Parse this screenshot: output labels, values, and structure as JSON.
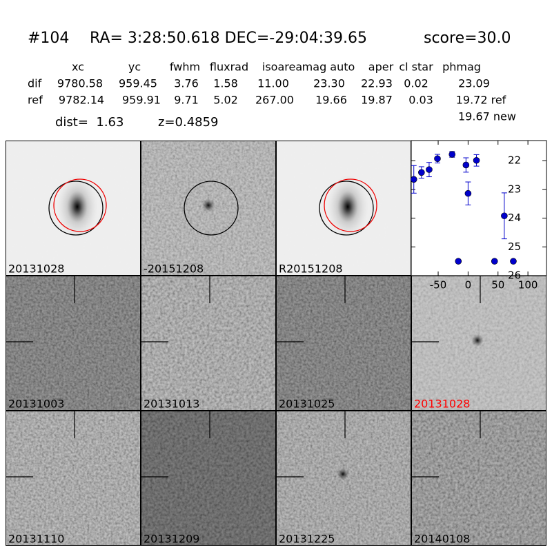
{
  "header": {
    "id": "#104",
    "coords": "RA= 3:28:50.618 DEC=-29:04:39.65",
    "score": "score=30.0"
  },
  "table": {
    "columns": [
      "xc",
      "yc",
      "fwhm",
      "fluxrad",
      "isoarea",
      "mag auto",
      "aper",
      "cl star",
      "phmag"
    ],
    "rows": [
      [
        "dif",
        "9780.58",
        "959.45",
        "3.76",
        "1.58",
        "11.00",
        "23.30",
        "22.93",
        "0.02",
        "23.09"
      ],
      [
        "ref",
        "9782.14",
        "959.91",
        "9.71",
        "5.02",
        "267.00",
        "19.66",
        "19.87",
        "0.03",
        "19.72 ref"
      ]
    ],
    "extra": "19.67 new"
  },
  "dist": "dist=  1.63",
  "z": "z=0.4859",
  "panels": [
    {
      "label": "20131028"
    },
    {
      "label": "-20151208"
    },
    {
      "label": "R20151208"
    },
    {
      "label": "20131003"
    },
    {
      "label": "20131013"
    },
    {
      "label": "20131025"
    },
    {
      "label": "20131028",
      "color": "red"
    },
    {
      "label": "20131110"
    },
    {
      "label": "20131209"
    },
    {
      "label": "20131225"
    },
    {
      "label": "20140108"
    }
  ],
  "chart_data": {
    "type": "scatter",
    "color": "#0000cc",
    "x": [
      -90.7,
      -77.9,
      -65.1,
      -51.2,
      -26.7,
      -16.3,
      -3.5,
      0,
      14,
      44.2,
      60.5,
      75.6
    ],
    "values": [
      22.65,
      22.41,
      22.31,
      21.93,
      21.78,
      25.5,
      22.15,
      23.14,
      21.99,
      25.5,
      23.92,
      25.5
    ],
    "errors": [
      0.48,
      0.2,
      0.25,
      0.15,
      0.1,
      null,
      0.25,
      0.4,
      0.2,
      null,
      0.8,
      null
    ],
    "xlim": [
      -95,
      131
    ],
    "ylim": [
      21.3,
      26
    ],
    "y_inverted": true,
    "xticks": [
      -50,
      0,
      50,
      100
    ],
    "yticks": [
      22,
      23,
      24,
      25,
      26
    ]
  }
}
